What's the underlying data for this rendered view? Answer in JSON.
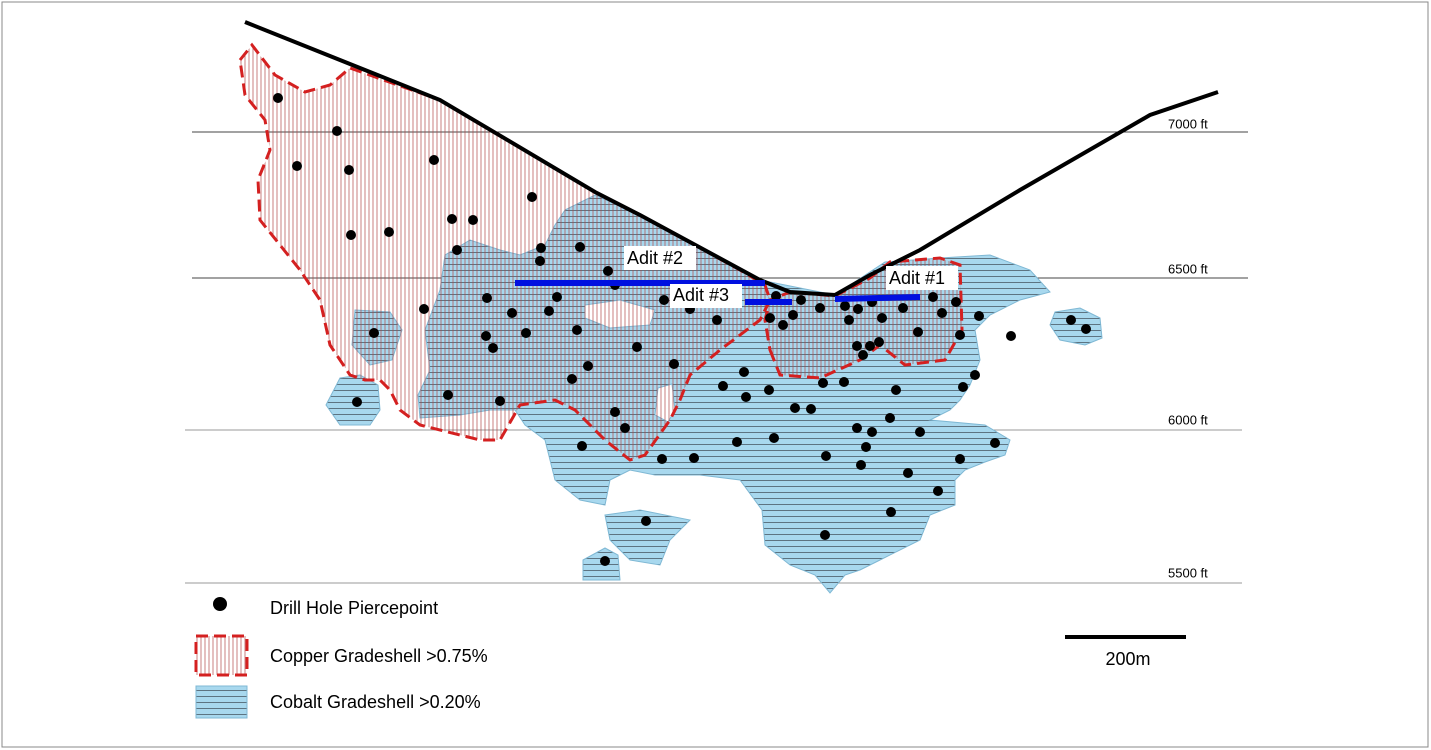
{
  "elevations": [
    "7000 ft",
    "6500 ft",
    "6000 ft",
    "5500 ft"
  ],
  "adits": [
    "Adit #2",
    "Adit #3",
    "Adit #1"
  ],
  "legend": [
    "Drill Hole Piercepoint",
    "Copper Gradeshell >0.75%",
    "Cobalt Gradeshell >0.20%"
  ],
  "scale_bar": "200m"
}
